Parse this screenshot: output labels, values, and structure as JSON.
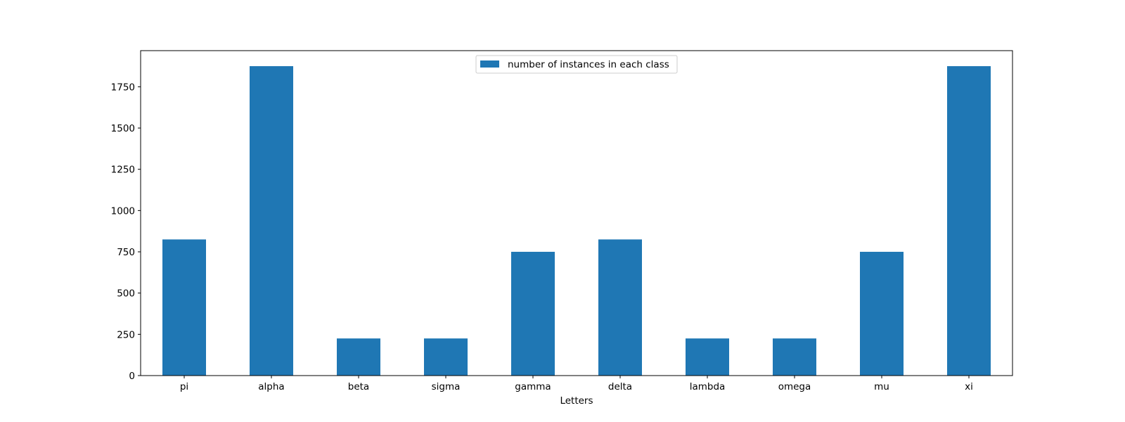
{
  "chart_data": {
    "type": "bar",
    "title": "",
    "xlabel": "Letters",
    "ylabel": "",
    "categories": [
      "pi",
      "alpha",
      "beta",
      "sigma",
      "gamma",
      "delta",
      "lambda",
      "omega",
      "mu",
      "xi"
    ],
    "series": [
      {
        "name": "number of instances in each class",
        "values": [
          825,
          1875,
          225,
          225,
          750,
          825,
          225,
          225,
          750,
          1875
        ],
        "color": "#1f77b4"
      }
    ],
    "ylim": [
      0,
      1969
    ],
    "yticks": [
      0,
      250,
      500,
      750,
      1000,
      1250,
      1500,
      1750
    ],
    "grid": false,
    "legend_position": "upper-center"
  }
}
